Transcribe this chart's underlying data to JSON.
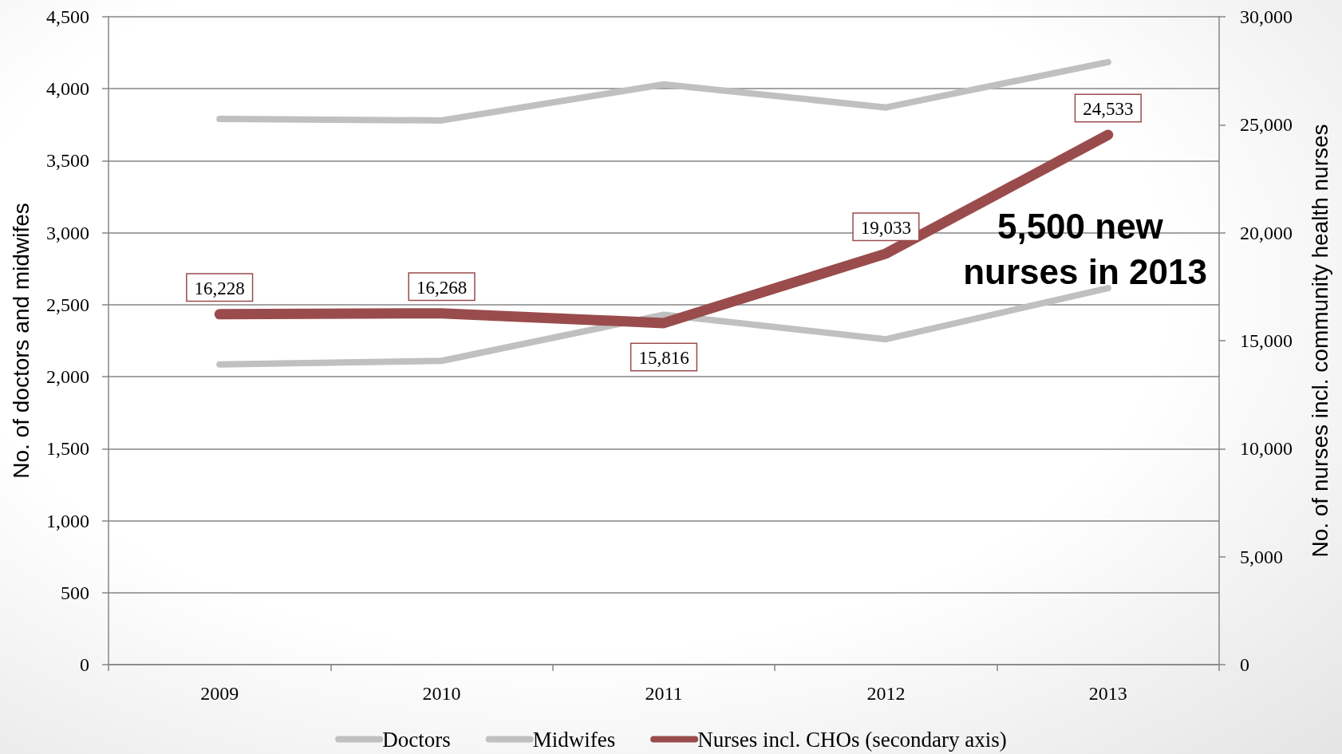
{
  "chart_data": {
    "type": "line",
    "categories": [
      "2009",
      "2010",
      "2011",
      "2012",
      "2013"
    ],
    "ylabel": "No. of doctors and midwifes",
    "y2label": "No. of nurses incl. community health nurses",
    "ylim": [
      0,
      4500
    ],
    "yticks": [
      0,
      500,
      {
        "value": 1000,
        "label": "1,000"
      },
      {
        "value": 1500,
        "label": "1,500"
      },
      {
        "value": 2000,
        "label": "2,000"
      },
      {
        "value": 2500,
        "label": "2,500"
      },
      {
        "value": 3000,
        "label": "3,000"
      },
      {
        "value": 3500,
        "label": "3,500"
      },
      {
        "value": 4000,
        "label": "4,000"
      },
      {
        "value": 4500,
        "label": "4,500"
      }
    ],
    "y2lim": [
      0,
      30000
    ],
    "y2ticks": [
      0,
      {
        "value": 5000,
        "label": "5,000"
      },
      {
        "value": 10000,
        "label": "10,000"
      },
      {
        "value": 15000,
        "label": "15,000"
      },
      {
        "value": 20000,
        "label": "20,000"
      },
      {
        "value": 25000,
        "label": "25,000"
      },
      {
        "value": 30000,
        "label": "30,000"
      }
    ],
    "series": [
      {
        "name": "Doctors",
        "color": "#c0c0c0",
        "values": [
          2085,
          2110,
          2430,
          2260,
          2615
        ]
      },
      {
        "name": "Midwifes",
        "color": "#c0c0c0",
        "values": [
          3790,
          3780,
          4030,
          3870,
          4185
        ]
      },
      {
        "name": "Nurses incl. CHOs (secondary axis)",
        "color": "#9a4c4d",
        "axis": "y2",
        "values": [
          16228,
          16268,
          15816,
          19033,
          24533
        ],
        "value_labels": [
          "16,228",
          "16,268",
          "15,816",
          "19,033",
          "24,533"
        ]
      }
    ],
    "annotations": [
      "5,500 new nurses in 2013"
    ],
    "grid": "y",
    "legend": "bottom",
    "marker": "none"
  }
}
